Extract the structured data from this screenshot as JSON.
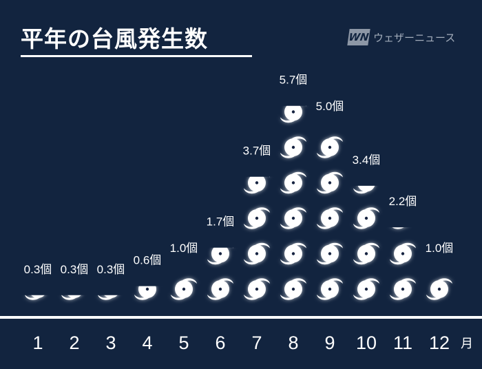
{
  "title": "平年の台風発生数",
  "logo": {
    "mark": "WN",
    "text": "ウェザーニュース"
  },
  "colors": {
    "background": "#12243f",
    "icon": "#ffffff",
    "text": "#ffffff"
  },
  "chart_data": {
    "type": "pictogram",
    "title": "平年の台風発生数",
    "unit": "個",
    "x_unit": "月",
    "icon": "typhoon-icon",
    "categories": [
      "1",
      "2",
      "3",
      "4",
      "5",
      "6",
      "7",
      "8",
      "9",
      "10",
      "11",
      "12"
    ],
    "values": [
      0.3,
      0.3,
      0.3,
      0.6,
      1.0,
      1.7,
      3.7,
      5.7,
      5.0,
      3.4,
      2.2,
      1.0
    ],
    "labels": [
      "0.3個",
      "0.3個",
      "0.3個",
      "0.6個",
      "1.0個",
      "1.7個",
      "3.7個",
      "5.7個",
      "5.0個",
      "3.4個",
      "2.2個",
      "1.0個"
    ]
  }
}
